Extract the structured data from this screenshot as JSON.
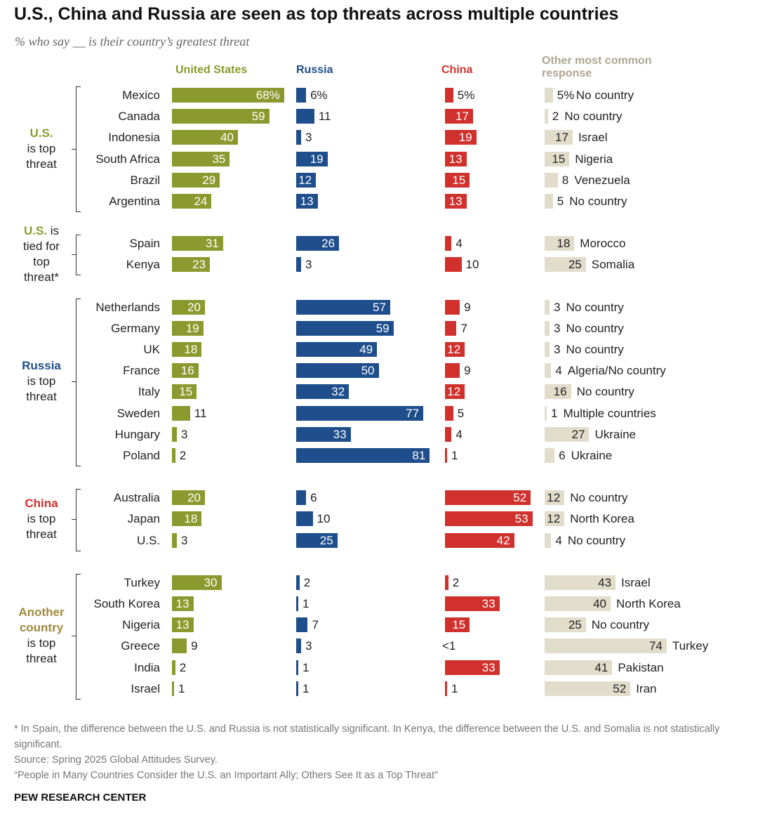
{
  "title": "U.S., China and Russia are seen as top threats across multiple countries",
  "subtitle": "% who say __ is their country’s greatest threat",
  "columns": {
    "us": "United States",
    "russia": "Russia",
    "china": "China",
    "other": "Other most common response"
  },
  "colors": {
    "us": "#8a9a2e",
    "russia": "#1f4e8c",
    "china": "#d0312d",
    "other": "#e2dccb"
  },
  "groups": [
    {
      "label_parts": [
        {
          "t": "U.S.",
          "hl": true,
          "color": "#8a9a2e"
        },
        {
          "t": "is top"
        },
        {
          "t": "threat"
        }
      ]
    },
    {
      "label_parts": [
        {
          "t": "U.S. is",
          "hl_prefix": "U.S.",
          "color": "#8a9a2e"
        },
        {
          "t": "tied for"
        },
        {
          "t": "top"
        },
        {
          "t": "threat*"
        }
      ]
    },
    {
      "label_parts": [
        {
          "t": "Russia",
          "hl": true,
          "color": "#1f4e8c"
        },
        {
          "t": "is top"
        },
        {
          "t": "threat"
        }
      ]
    },
    {
      "label_parts": [
        {
          "t": "China",
          "hl": true,
          "color": "#d0312d"
        },
        {
          "t": "is top"
        },
        {
          "t": "threat"
        }
      ]
    },
    {
      "label_parts": [
        {
          "t": "Another",
          "hl": true,
          "color": "#a08a3e"
        },
        {
          "t": "country",
          "hl": true,
          "color": "#a08a3e"
        },
        {
          "t": "is top"
        },
        {
          "t": "threat"
        }
      ]
    }
  ],
  "chart_data": {
    "type": "bar",
    "title": "U.S., China and Russia are seen as top threats across multiple countries",
    "subtitle": "% who say __ is their country’s greatest threat",
    "series": [
      "United States",
      "Russia",
      "China",
      "Other most common response"
    ],
    "rows": [
      {
        "group": 0,
        "country": "Mexico",
        "us": 68,
        "us_label": "68%",
        "ru": 6,
        "ru_label": "6%",
        "cn": 5,
        "cn_label": "5%",
        "other": 5,
        "other_label": "5%",
        "other_name": "No country"
      },
      {
        "group": 0,
        "country": "Canada",
        "us": 59,
        "us_label": "59",
        "ru": 11,
        "ru_label": "11",
        "cn": 17,
        "cn_label": "17",
        "other": 2,
        "other_label": "2",
        "other_name": "No country"
      },
      {
        "group": 0,
        "country": "Indonesia",
        "us": 40,
        "us_label": "40",
        "ru": 3,
        "ru_label": "3",
        "cn": 19,
        "cn_label": "19",
        "other": 17,
        "other_label": "17",
        "other_name": "Israel"
      },
      {
        "group": 0,
        "country": "South Africa",
        "us": 35,
        "us_label": "35",
        "ru": 19,
        "ru_label": "19",
        "cn": 13,
        "cn_label": "13",
        "other": 15,
        "other_label": "15",
        "other_name": "Nigeria"
      },
      {
        "group": 0,
        "country": "Brazil",
        "us": 29,
        "us_label": "29",
        "ru": 12,
        "ru_label": "12",
        "cn": 15,
        "cn_label": "15",
        "other": 8,
        "other_label": "8",
        "other_name": "Venezuela"
      },
      {
        "group": 0,
        "country": "Argentina",
        "us": 24,
        "us_label": "24",
        "ru": 13,
        "ru_label": "13",
        "cn": 13,
        "cn_label": "13",
        "other": 5,
        "other_label": "5",
        "other_name": "No country"
      },
      {
        "group": 1,
        "country": "Spain",
        "us": 31,
        "us_label": "31",
        "ru": 26,
        "ru_label": "26",
        "cn": 4,
        "cn_label": "4",
        "other": 18,
        "other_label": "18",
        "other_name": "Morocco"
      },
      {
        "group": 1,
        "country": "Kenya",
        "us": 23,
        "us_label": "23",
        "ru": 3,
        "ru_label": "3",
        "cn": 10,
        "cn_label": "10",
        "other": 25,
        "other_label": "25",
        "other_name": "Somalia"
      },
      {
        "group": 2,
        "country": "Netherlands",
        "us": 20,
        "us_label": "20",
        "ru": 57,
        "ru_label": "57",
        "cn": 9,
        "cn_label": "9",
        "other": 3,
        "other_label": "3",
        "other_name": "No country"
      },
      {
        "group": 2,
        "country": "Germany",
        "us": 19,
        "us_label": "19",
        "ru": 59,
        "ru_label": "59",
        "cn": 7,
        "cn_label": "7",
        "other": 3,
        "other_label": "3",
        "other_name": "No country"
      },
      {
        "group": 2,
        "country": "UK",
        "us": 18,
        "us_label": "18",
        "ru": 49,
        "ru_label": "49",
        "cn": 12,
        "cn_label": "12",
        "other": 3,
        "other_label": "3",
        "other_name": "No country"
      },
      {
        "group": 2,
        "country": "France",
        "us": 16,
        "us_label": "16",
        "ru": 50,
        "ru_label": "50",
        "cn": 9,
        "cn_label": "9",
        "other": 4,
        "other_label": "4",
        "other_name": "Algeria/No country"
      },
      {
        "group": 2,
        "country": "Italy",
        "us": 15,
        "us_label": "15",
        "ru": 32,
        "ru_label": "32",
        "cn": 12,
        "cn_label": "12",
        "other": 16,
        "other_label": "16",
        "other_name": "No country"
      },
      {
        "group": 2,
        "country": "Sweden",
        "us": 11,
        "us_label": "11",
        "ru": 77,
        "ru_label": "77",
        "cn": 5,
        "cn_label": "5",
        "other": 1,
        "other_label": "1",
        "other_name": "Multiple countries"
      },
      {
        "group": 2,
        "country": "Hungary",
        "us": 3,
        "us_label": "3",
        "ru": 33,
        "ru_label": "33",
        "cn": 4,
        "cn_label": "4",
        "other": 27,
        "other_label": "27",
        "other_name": "Ukraine"
      },
      {
        "group": 2,
        "country": "Poland",
        "us": 2,
        "us_label": "2",
        "ru": 81,
        "ru_label": "81",
        "cn": 1,
        "cn_label": "1",
        "other": 6,
        "other_label": "6",
        "other_name": "Ukraine"
      },
      {
        "group": 3,
        "country": "Australia",
        "us": 20,
        "us_label": "20",
        "ru": 6,
        "ru_label": "6",
        "cn": 52,
        "cn_label": "52",
        "other": 12,
        "other_label": "12",
        "other_name": "No country"
      },
      {
        "group": 3,
        "country": "Japan",
        "us": 18,
        "us_label": "18",
        "ru": 10,
        "ru_label": "10",
        "cn": 53,
        "cn_label": "53",
        "other": 12,
        "other_label": "12",
        "other_name": "North Korea"
      },
      {
        "group": 3,
        "country": "U.S.",
        "us": 3,
        "us_label": "3",
        "ru": 25,
        "ru_label": "25",
        "cn": 42,
        "cn_label": "42",
        "other": 4,
        "other_label": "4",
        "other_name": "No country"
      },
      {
        "group": 4,
        "country": "Turkey",
        "us": 30,
        "us_label": "30",
        "ru": 2,
        "ru_label": "2",
        "cn": 2,
        "cn_label": "2",
        "other": 43,
        "other_label": "43",
        "other_name": "Israel"
      },
      {
        "group": 4,
        "country": "South Korea",
        "us": 13,
        "us_label": "13",
        "ru": 1,
        "ru_label": "1",
        "cn": 33,
        "cn_label": "33",
        "other": 40,
        "other_label": "40",
        "other_name": "North Korea"
      },
      {
        "group": 4,
        "country": "Nigeria",
        "us": 13,
        "us_label": "13",
        "ru": 7,
        "ru_label": "7",
        "cn": 15,
        "cn_label": "15",
        "other": 25,
        "other_label": "25",
        "other_name": "No country"
      },
      {
        "group": 4,
        "country": "Greece",
        "us": 9,
        "us_label": "9",
        "ru": 3,
        "ru_label": "3",
        "cn": 0,
        "cn_label": "<1",
        "other": 74,
        "other_label": "74",
        "other_name": "Turkey"
      },
      {
        "group": 4,
        "country": "India",
        "us": 2,
        "us_label": "2",
        "ru": 1,
        "ru_label": "1",
        "cn": 33,
        "cn_label": "33",
        "other": 41,
        "other_label": "41",
        "other_name": "Pakistan"
      },
      {
        "group": 4,
        "country": "Israel",
        "us": 1,
        "us_label": "1",
        "ru": 1,
        "ru_label": "1",
        "cn": 1,
        "cn_label": "1",
        "other": 52,
        "other_label": "52",
        "other_name": "Iran"
      }
    ]
  },
  "notes": {
    "footnote": "* In Spain, the difference between the U.S. and Russia is not statistically significant. In Kenya, the difference between the U.S. and Somalia is not statistically significant.",
    "source": "Source: Spring 2025 Global Attitudes Survey.",
    "report": "“People in Many Countries Consider the U.S. an Important Ally; Others See It as a Top Threat”",
    "brand": "PEW RESEARCH CENTER"
  }
}
